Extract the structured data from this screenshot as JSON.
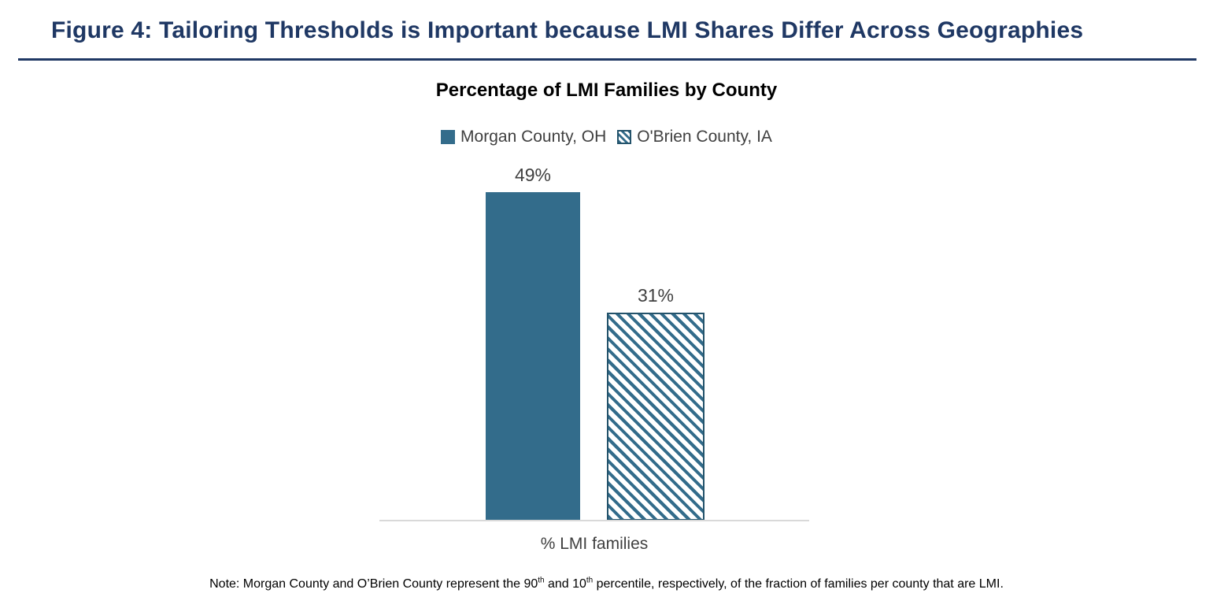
{
  "page": {
    "figure_title": "Figure 4: Tailoring Thresholds is Important because LMI Shares Differ Across Geographies"
  },
  "colors": {
    "figure_title_navy": "#1F3864",
    "divider_navy": "#1F3864",
    "bar_fill_teal": "#336C8B",
    "hatch_border": "#24536B",
    "axis_line_gray": "#D9D9D9",
    "label_gray": "#404040",
    "chart_title_black": "#000000"
  },
  "chart_data": {
    "type": "bar",
    "title": "Percentage of LMI Families by County",
    "categories": [
      "% LMI families"
    ],
    "series": [
      {
        "name": "Morgan County, OH",
        "values": [
          49
        ],
        "label": "49%",
        "fill": "solid",
        "color": "#336C8B"
      },
      {
        "name": "O'Brien County, IA",
        "values": [
          31
        ],
        "label": "31%",
        "fill": "diagonal-hatch",
        "color": "#336C8B"
      }
    ],
    "ylim": [
      0,
      55
    ],
    "grid": false,
    "y_axis_visible": false,
    "legend_position": "top",
    "data_labels": true
  },
  "note": {
    "prefix": "Note: Morgan County and O’Brien County represent the 90",
    "sup1": "th",
    "mid": " and 10",
    "sup2": "th",
    "suffix": " percentile, respectively, of the fraction of families per county that are LMI."
  }
}
